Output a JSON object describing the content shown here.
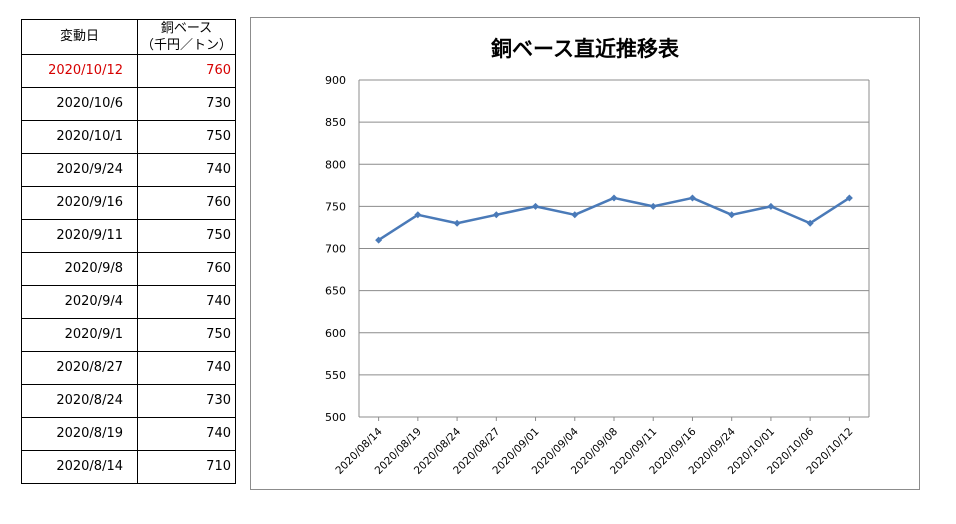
{
  "table": {
    "header": {
      "date": "変動日",
      "price_line1": "銅ベース",
      "price_line2": "（千円／トン）"
    },
    "rows": [
      {
        "date": "2020/10/12",
        "price": "760"
      },
      {
        "date": "2020/10/6",
        "price": "730"
      },
      {
        "date": "2020/10/1",
        "price": "750"
      },
      {
        "date": "2020/9/24",
        "price": "740"
      },
      {
        "date": "2020/9/16",
        "price": "760"
      },
      {
        "date": "2020/9/11",
        "price": "750"
      },
      {
        "date": "2020/9/8",
        "price": "760"
      },
      {
        "date": "2020/9/4",
        "price": "740"
      },
      {
        "date": "2020/9/1",
        "price": "750"
      },
      {
        "date": "2020/8/27",
        "price": "740"
      },
      {
        "date": "2020/8/24",
        "price": "730"
      },
      {
        "date": "2020/8/19",
        "price": "740"
      },
      {
        "date": "2020/8/14",
        "price": "710"
      }
    ]
  },
  "colors": {
    "line": "#4a7ab8",
    "latest_row_text": "#d60000",
    "grid": "#8c8c8c"
  },
  "chart_data": {
    "type": "line",
    "title": "銅ベース直近推移表",
    "xlabel": "",
    "ylabel": "",
    "categories": [
      "2020/08/14",
      "2020/08/19",
      "2020/08/24",
      "2020/08/27",
      "2020/09/01",
      "2020/09/04",
      "2020/09/08",
      "2020/09/11",
      "2020/09/16",
      "2020/09/24",
      "2020/10/01",
      "2020/10/06",
      "2020/10/12"
    ],
    "series": [
      {
        "values": [
          710,
          740,
          730,
          740,
          750,
          740,
          760,
          750,
          760,
          740,
          750,
          730,
          760
        ]
      }
    ],
    "ylim": [
      500,
      900
    ],
    "yticks": [
      500,
      550,
      600,
      650,
      700,
      750,
      800,
      850,
      900
    ],
    "grid": true,
    "legend": false,
    "marker": "diamond"
  }
}
